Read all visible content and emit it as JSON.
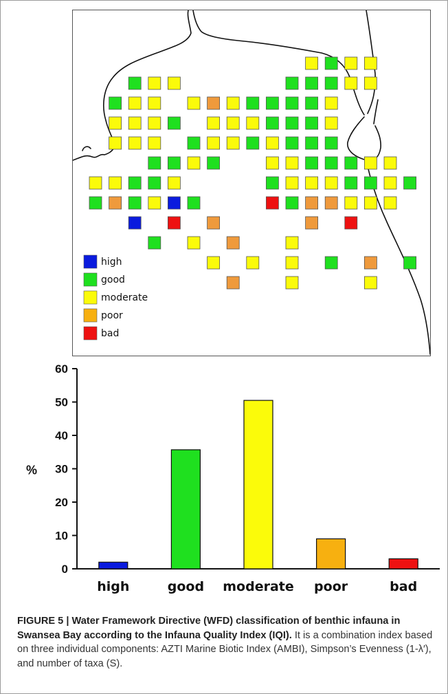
{
  "figure": {
    "caption_title": "FIGURE 5 | Water Framework Directive (WFD) classification of benthic infauna in Swansea Bay according to the Infauna Quality Index (IQI).",
    "caption_body": " It is a combination index based on three individual components: AZTI Marine Biotic Index (AMBI), Simpson’s Evenness (1-λ′), and number of taxa (S)."
  },
  "legend": {
    "items": [
      {
        "label": "high",
        "color": "#0a1bde"
      },
      {
        "label": "good",
        "color": "#1fe01f"
      },
      {
        "label": "moderate",
        "color": "#fbfb0a"
      },
      {
        "label": "poor",
        "color": "#f7b010"
      },
      {
        "label": "bad",
        "color": "#ee1111"
      }
    ]
  },
  "map": {
    "station_colors": {
      "H": "#0a1bde",
      "G": "#1fe01f",
      "M": "#fbfb0a",
      "P": "#ef9a3c",
      "B": "#ee1111"
    },
    "stations_grid": [
      "...........MGMM......",
      "..GMM.....GGGMM......",
      ".GMM.MPMGGGGM........",
      ".MMMG.MMMGGGM........",
      ".MMM.GMMGMGGG........",
      "...GGMG..MMGGGMM.....",
      "MMGGM....GMMMGGMG....",
      "GPGMHG...BGPPMMM.....",
      "..H.B.P....P.B.......",
      "...G.M.P..M.......G..",
      "......M.M.M.G.P.G....",
      ".......P..M...M......"
    ]
  },
  "chart_data": {
    "type": "bar",
    "categories": [
      "high",
      "good",
      "moderate",
      "poor",
      "bad"
    ],
    "values": [
      2,
      35.7,
      50.5,
      9,
      3
    ],
    "colors": [
      "#0a1bde",
      "#1fe01f",
      "#fbfb0a",
      "#f7b010",
      "#ee1111"
    ],
    "title": "",
    "xlabel": "",
    "ylabel": "%",
    "ylim": [
      0,
      60
    ],
    "yticks": [
      0,
      10,
      20,
      30,
      40,
      50,
      60
    ],
    "grid": false
  }
}
